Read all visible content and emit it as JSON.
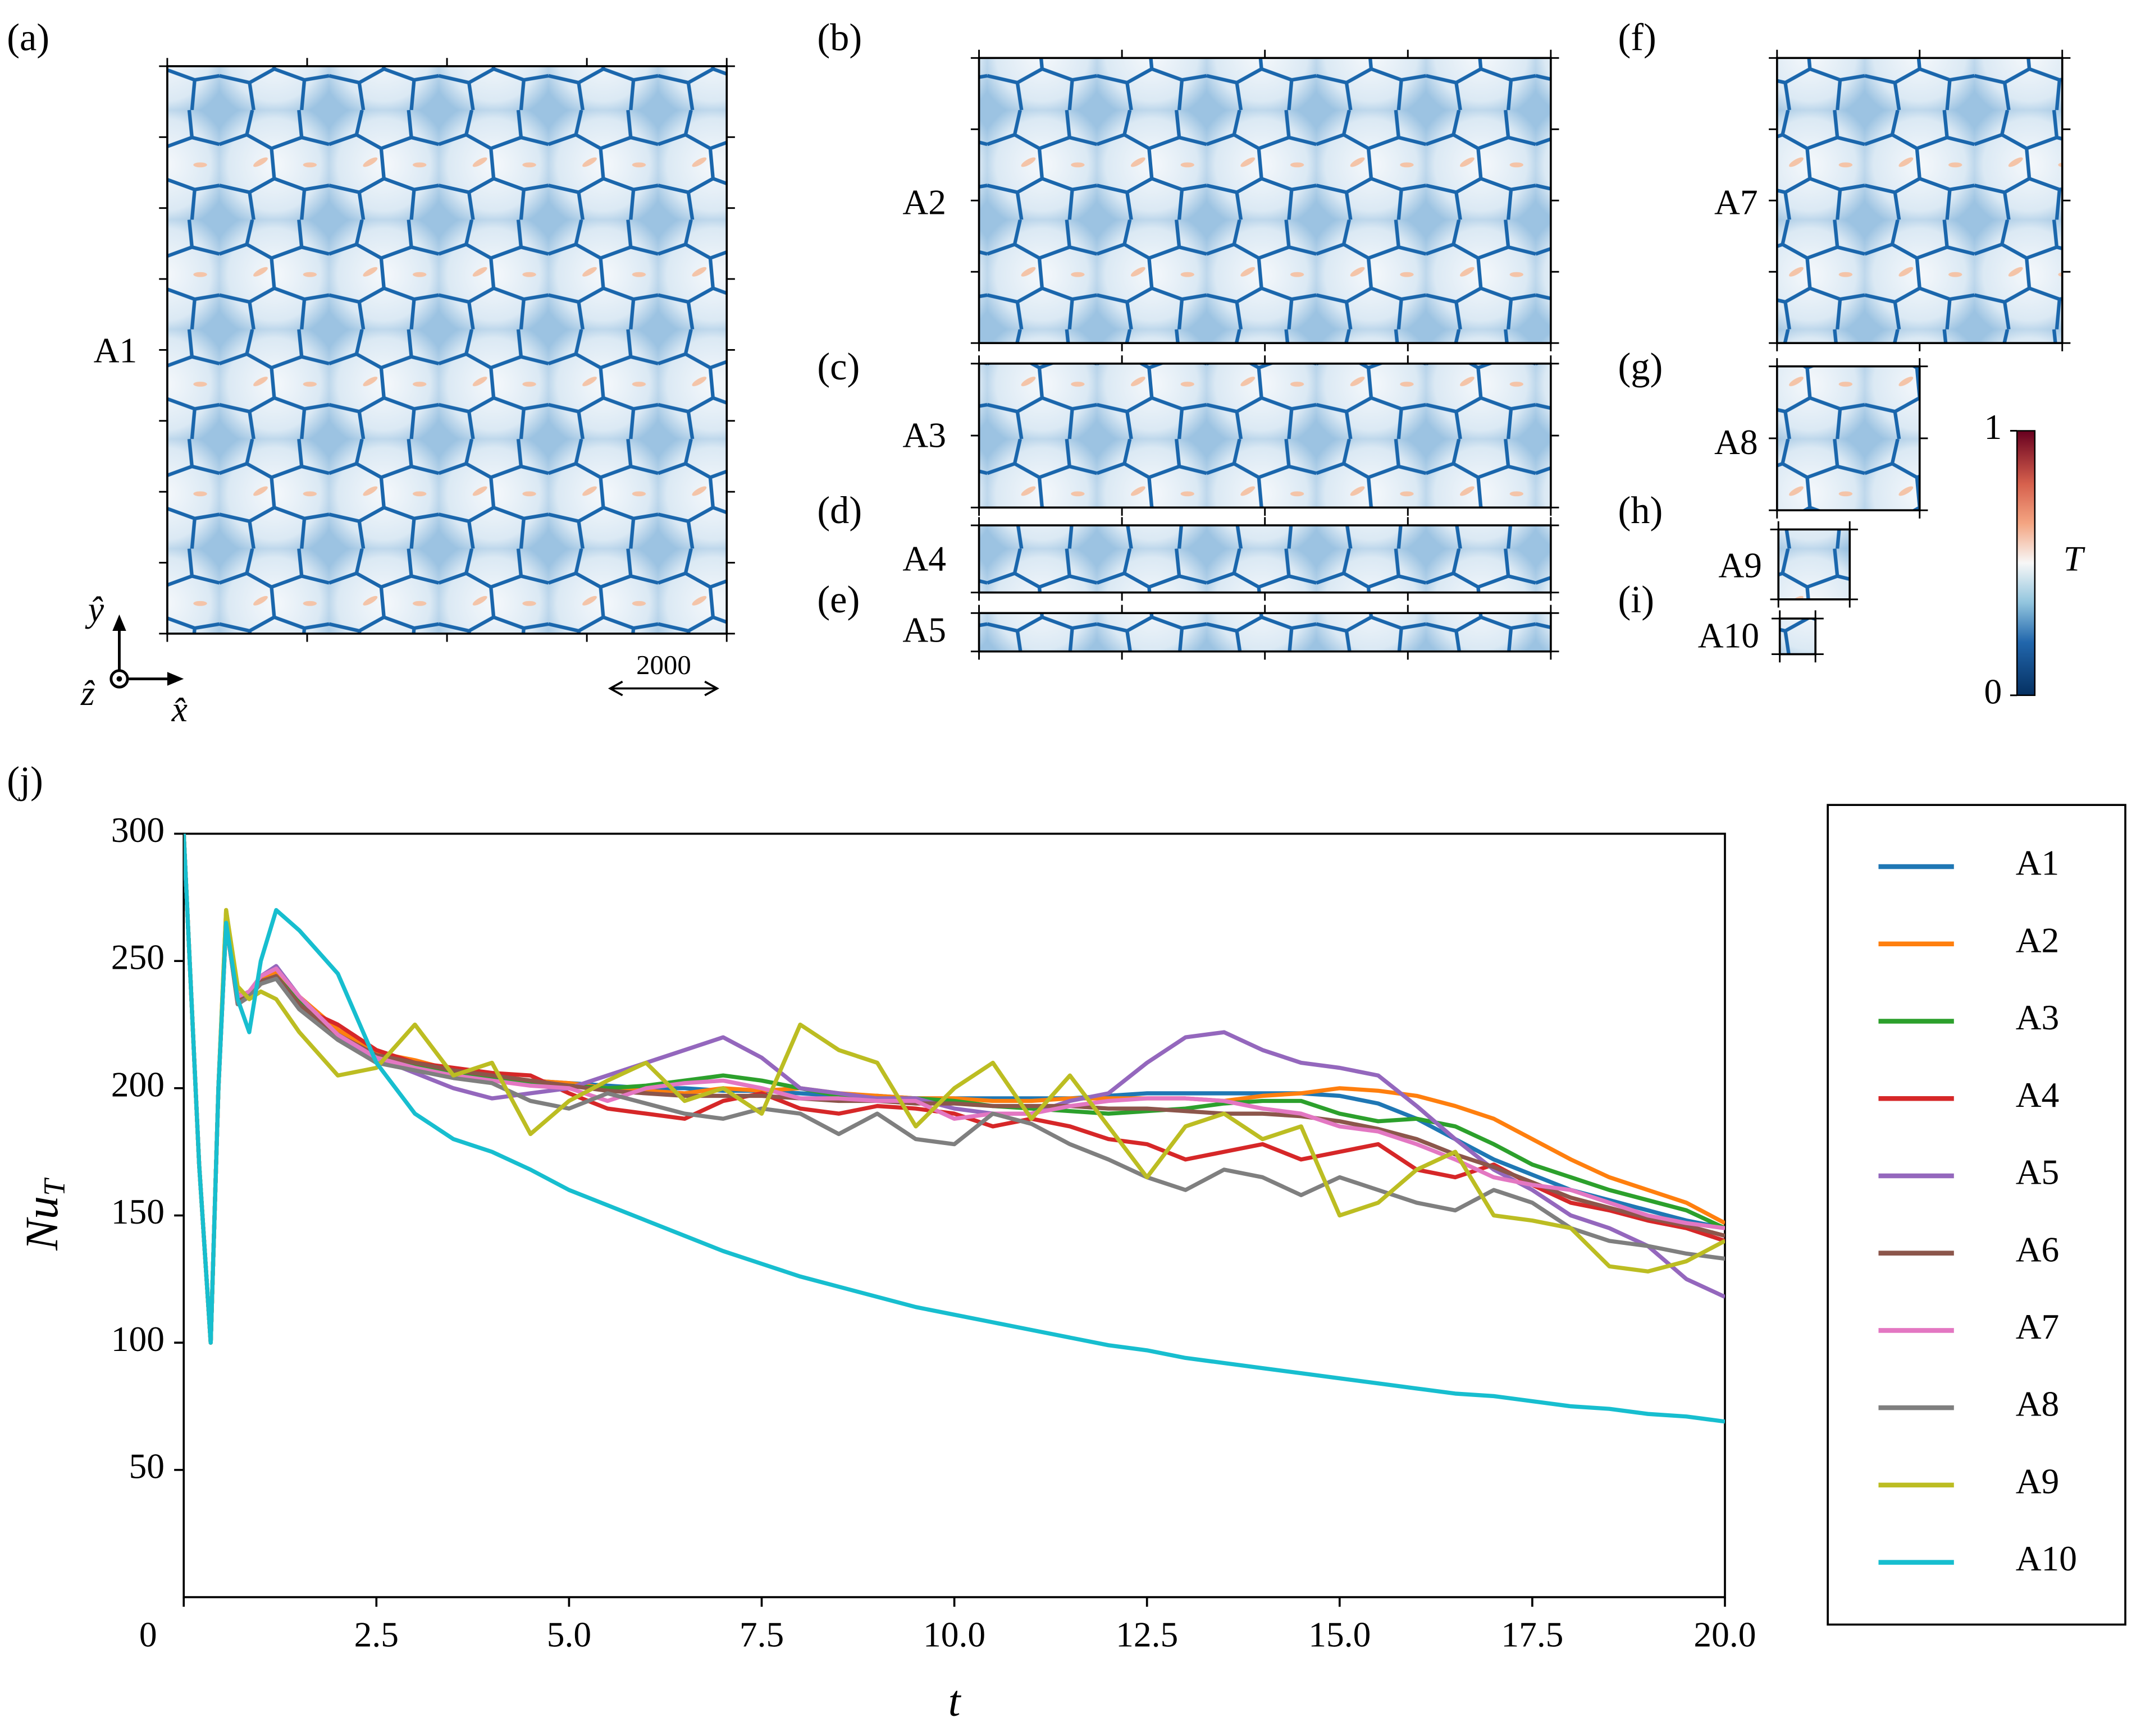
{
  "panels": [
    {
      "tag": "(a)",
      "label": "A1"
    },
    {
      "tag": "(b)",
      "label": "A2"
    },
    {
      "tag": "(c)",
      "label": "A3"
    },
    {
      "tag": "(d)",
      "label": "A4"
    },
    {
      "tag": "(e)",
      "label": "A5"
    },
    {
      "tag": "(f)",
      "label": "A7"
    },
    {
      "tag": "(g)",
      "label": "A8"
    },
    {
      "tag": "(h)",
      "label": "A9"
    },
    {
      "tag": "(i)",
      "label": "A10"
    }
  ],
  "scale_bar": "2000",
  "axes_key": {
    "x": "x̂",
    "y": "ŷ",
    "z": "ẑ"
  },
  "colorbar": {
    "label": "T",
    "ticks": [
      0,
      1
    ]
  },
  "chart_data": {
    "type": "line",
    "tag": "(j)",
    "x_label": "t",
    "y_label": {
      "main": "Nu",
      "sub": "T"
    },
    "xlim": [
      0,
      20
    ],
    "ylim": [
      0,
      300
    ],
    "xticks": [
      0,
      2.5,
      {
        "value": 5,
        "label": "5.0"
      },
      7.5,
      {
        "value": 10,
        "label": "10.0"
      },
      12.5,
      {
        "value": 15,
        "label": "15.0"
      },
      17.5,
      {
        "value": 20,
        "label": "20.0"
      }
    ],
    "yticks": [
      50,
      100,
      150,
      200,
      250,
      300
    ],
    "legend": "outside-right",
    "x": [
      0,
      0.2,
      0.35,
      0.45,
      0.55,
      0.7,
      0.85,
      1.0,
      1.2,
      1.5,
      2.0,
      2.5,
      3.0,
      3.5,
      4.0,
      4.5,
      5.0,
      5.5,
      6.0,
      6.5,
      7.0,
      7.5,
      8.0,
      8.5,
      9.0,
      9.5,
      10.0,
      10.5,
      11.0,
      11.5,
      12.0,
      12.5,
      13.0,
      13.5,
      14.0,
      14.5,
      15.0,
      15.5,
      16.0,
      16.5,
      17.0,
      17.5,
      18.0,
      18.5,
      19.0,
      19.5,
      20.0
    ],
    "series": [
      {
        "name": "A1",
        "color": "#1f77b4",
        "values": [
          300,
          170,
          100,
          200,
          268,
          235,
          238,
          243,
          245,
          235,
          222,
          213,
          210,
          207,
          204,
          203,
          202,
          201,
          200,
          200,
          199,
          199,
          198,
          197,
          197,
          196,
          196,
          196,
          196,
          196,
          197,
          198,
          198,
          198,
          198,
          198,
          197,
          194,
          188,
          180,
          172,
          166,
          160,
          156,
          152,
          148,
          145
        ]
      },
      {
        "name": "A2",
        "color": "#ff7f0e",
        "values": [
          300,
          170,
          100,
          200,
          270,
          237,
          236,
          242,
          246,
          236,
          223,
          214,
          211,
          207,
          205,
          203,
          202,
          200,
          199,
          198,
          200,
          199,
          200,
          198,
          197,
          196,
          196,
          195,
          195,
          196,
          196,
          196,
          196,
          195,
          197,
          198,
          200,
          199,
          197,
          193,
          188,
          180,
          172,
          165,
          160,
          155,
          147
        ]
      },
      {
        "name": "A3",
        "color": "#2ca02c",
        "values": [
          300,
          170,
          100,
          200,
          266,
          234,
          237,
          242,
          244,
          234,
          220,
          212,
          209,
          206,
          204,
          202,
          201,
          200,
          201,
          203,
          205,
          203,
          200,
          197,
          196,
          196,
          195,
          193,
          192,
          191,
          190,
          191,
          192,
          194,
          195,
          195,
          190,
          187,
          188,
          185,
          178,
          170,
          165,
          160,
          156,
          152,
          145
        ]
      },
      {
        "name": "A4",
        "color": "#d62728",
        "values": [
          300,
          170,
          100,
          200,
          265,
          233,
          236,
          241,
          244,
          232,
          225,
          215,
          210,
          208,
          206,
          205,
          198,
          192,
          190,
          188,
          195,
          198,
          192,
          190,
          193,
          192,
          190,
          185,
          188,
          185,
          180,
          178,
          172,
          175,
          178,
          172,
          175,
          178,
          168,
          165,
          170,
          162,
          155,
          152,
          148,
          145,
          140
        ]
      },
      {
        "name": "A5",
        "color": "#9467bd",
        "values": [
          300,
          170,
          100,
          200,
          266,
          234,
          237,
          244,
          248,
          236,
          220,
          212,
          206,
          200,
          196,
          198,
          200,
          205,
          210,
          215,
          220,
          212,
          200,
          198,
          196,
          196,
          192,
          190,
          190,
          195,
          198,
          210,
          220,
          222,
          215,
          210,
          208,
          205,
          193,
          180,
          168,
          160,
          150,
          145,
          138,
          125,
          118
        ]
      },
      {
        "name": "A6",
        "color": "#8c564b",
        "values": [
          300,
          170,
          100,
          200,
          266,
          234,
          237,
          242,
          244,
          233,
          221,
          213,
          210,
          207,
          205,
          203,
          201,
          199,
          198,
          197,
          197,
          197,
          196,
          195,
          195,
          194,
          194,
          193,
          193,
          193,
          192,
          192,
          191,
          190,
          190,
          189,
          187,
          184,
          180,
          174,
          169,
          163,
          157,
          153,
          149,
          146,
          142
        ]
      },
      {
        "name": "A7",
        "color": "#e377c2",
        "values": [
          300,
          170,
          100,
          200,
          267,
          236,
          238,
          244,
          247,
          236,
          221,
          212,
          208,
          205,
          203,
          201,
          200,
          195,
          200,
          202,
          203,
          200,
          196,
          196,
          195,
          195,
          188,
          190,
          190,
          193,
          195,
          196,
          196,
          195,
          192,
          190,
          185,
          183,
          178,
          172,
          165,
          162,
          160,
          155,
          150,
          147,
          145
        ]
      },
      {
        "name": "A8",
        "color": "#7f7f7f",
        "values": [
          300,
          170,
          100,
          200,
          265,
          233,
          236,
          241,
          243,
          231,
          219,
          210,
          207,
          204,
          202,
          195,
          192,
          198,
          194,
          190,
          188,
          192,
          190,
          182,
          190,
          180,
          178,
          190,
          186,
          178,
          172,
          165,
          160,
          168,
          165,
          158,
          165,
          160,
          155,
          152,
          160,
          155,
          145,
          140,
          138,
          135,
          133
        ]
      },
      {
        "name": "A9",
        "color": "#bcbd22",
        "values": [
          300,
          170,
          100,
          200,
          270,
          240,
          235,
          238,
          235,
          222,
          205,
          208,
          225,
          205,
          210,
          182,
          195,
          203,
          210,
          195,
          200,
          190,
          225,
          215,
          210,
          185,
          200,
          210,
          188,
          205,
          185,
          165,
          185,
          190,
          180,
          185,
          150,
          155,
          168,
          175,
          150,
          148,
          145,
          130,
          128,
          132,
          140
        ]
      },
      {
        "name": "A10",
        "color": "#17becf",
        "values": [
          300,
          170,
          100,
          200,
          265,
          235,
          222,
          250,
          270,
          262,
          245,
          210,
          190,
          180,
          175,
          168,
          160,
          154,
          148,
          142,
          136,
          131,
          126,
          122,
          118,
          114,
          111,
          108,
          105,
          102,
          99,
          97,
          94,
          92,
          90,
          88,
          86,
          84,
          82,
          80,
          79,
          77,
          75,
          74,
          72,
          71,
          69
        ]
      }
    ]
  }
}
